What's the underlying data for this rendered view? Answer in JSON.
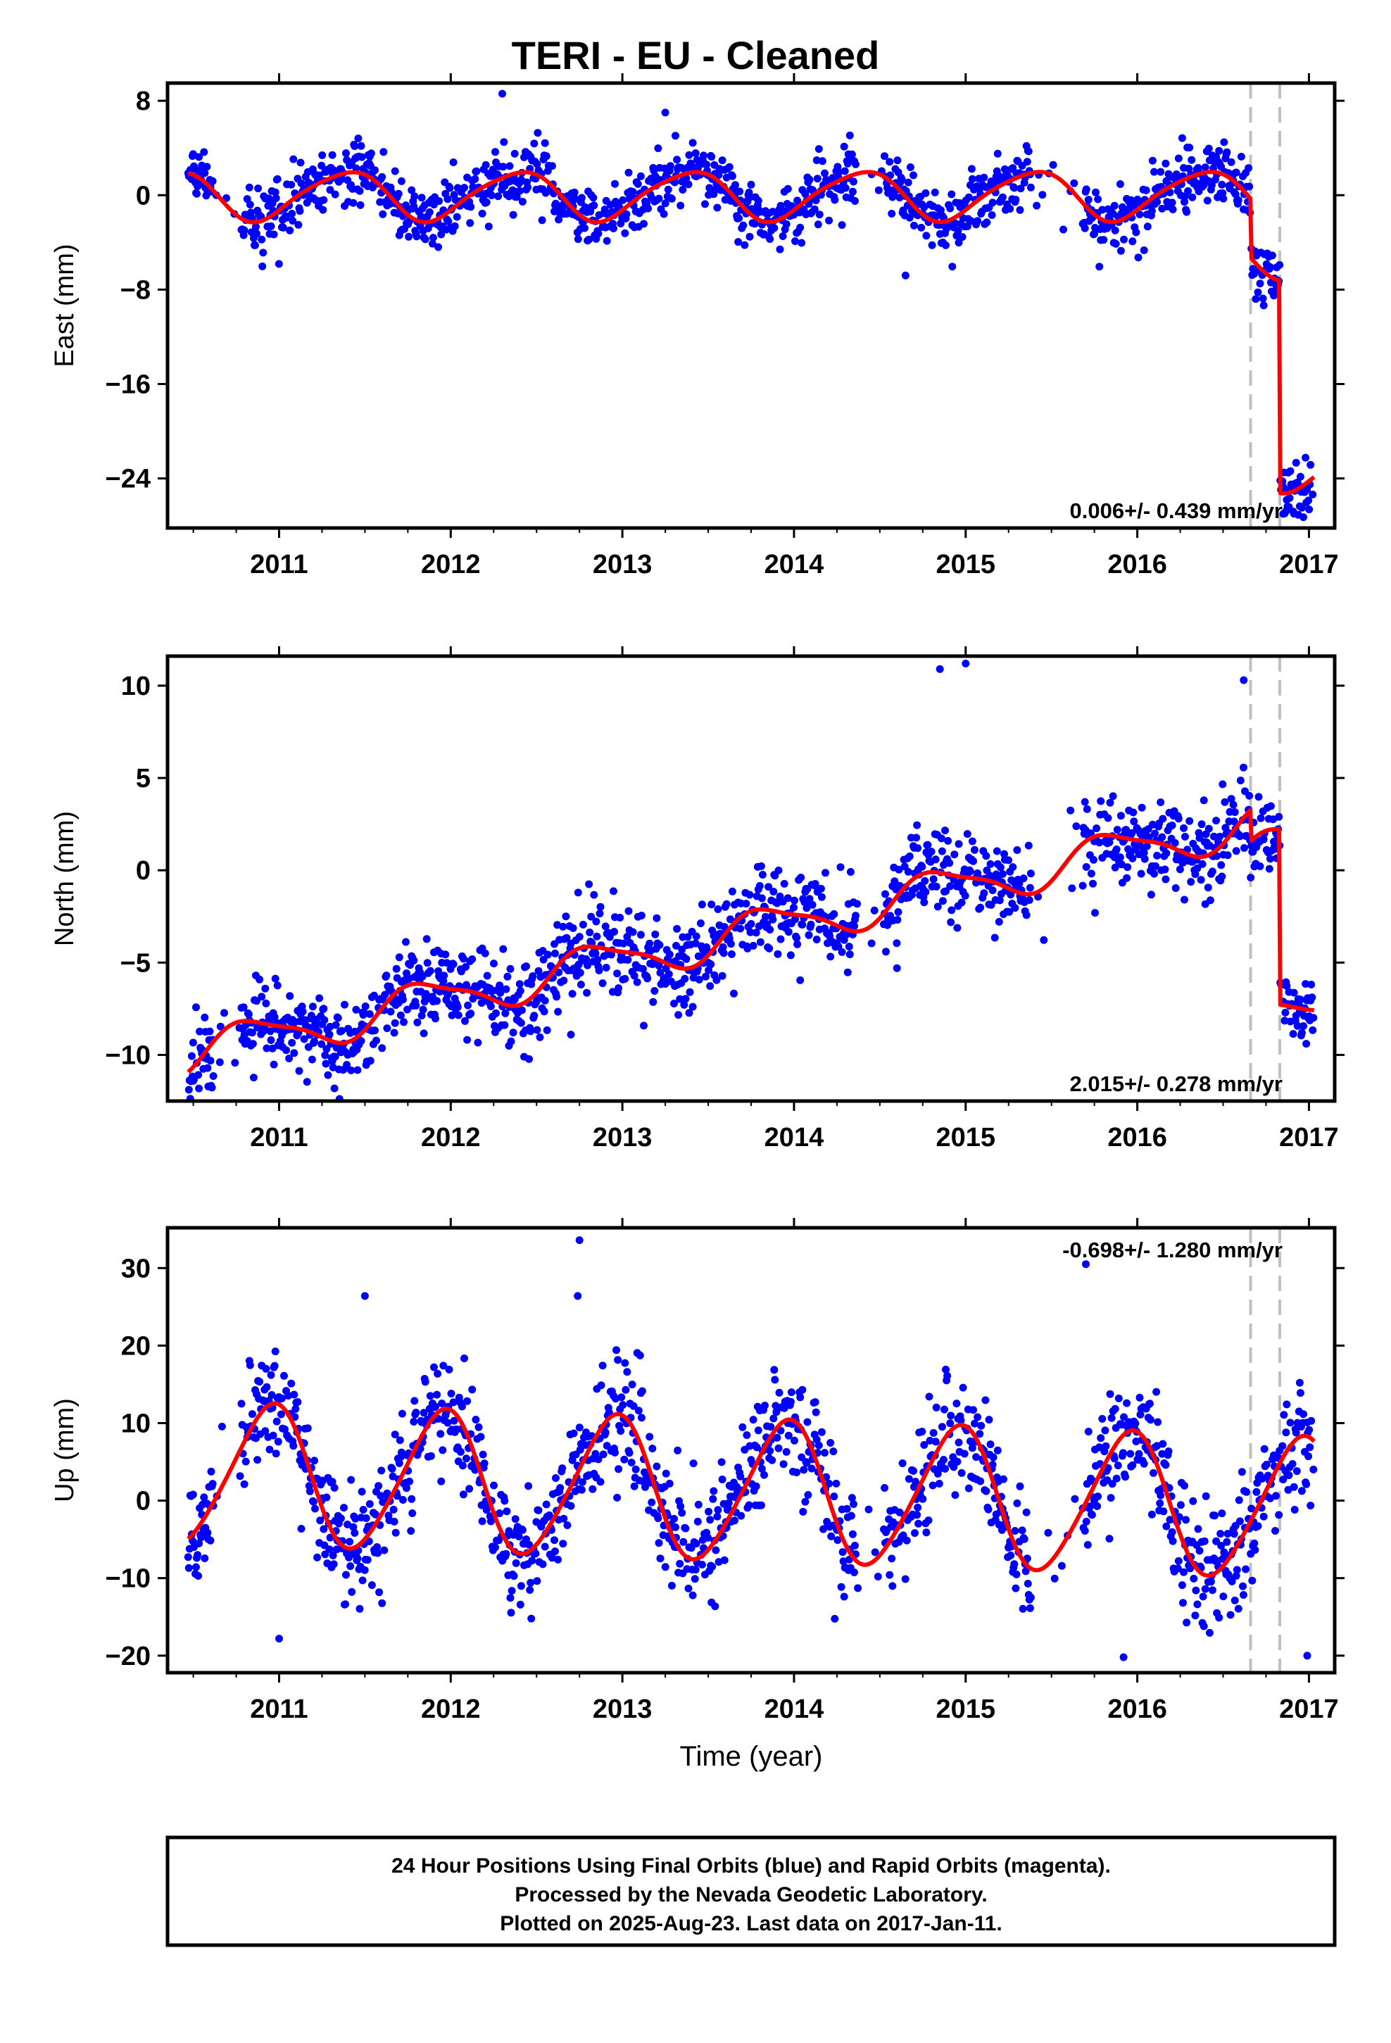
{
  "figure_title": "TERI  - EU - Cleaned",
  "footer": [
    "24 Hour Positions Using Final Orbits (blue) and Rapid Orbits (magenta).",
    "Processed by the Nevada Geodetic Laboratory.",
    "Plotted on 2025-Aug-23. Last data on 2017-Jan-11."
  ],
  "colors": {
    "points": "#0000ff",
    "fit": "#ff0000",
    "break_lines": "#c0c0c0",
    "frame": "#000000"
  },
  "chart_data": [
    {
      "type": "scatter",
      "name": "east",
      "ylabel": "East (mm)",
      "xlabel": "",
      "xlim": [
        2010.35,
        2017.15
      ],
      "ylim": [
        -28.2,
        9.5
      ],
      "xticks": [
        2011,
        2012,
        2013,
        2014,
        2015,
        2016,
        2017
      ],
      "yticks": [
        8,
        0,
        -8,
        -16,
        -24
      ],
      "ytick_labels": [
        "8",
        "0",
        "−8",
        "−16",
        "−24"
      ],
      "velocity_label": "0.006+/- 0.439 mm/yr",
      "velocity_label_position": "bottom-right",
      "breaks": [
        2016.66,
        2016.83
      ],
      "model": {
        "data_start": 2010.47,
        "data_end": 2017.03,
        "trend": 0.006,
        "offset": 0.0,
        "annual_sin": 1.4,
        "annual_cos": -1.5,
        "semiannual_sin": 0.2,
        "semiannual_cos": 0.25,
        "steps": [
          [
            2016.66,
            -5.0
          ],
          [
            2016.83,
            -18.0
          ]
        ],
        "noise": 1.3
      },
      "outliers": [
        [
          2012.3,
          8.6
        ],
        [
          2013.25,
          7.0
        ],
        [
          2014.65,
          -6.8
        ],
        [
          2016.85,
          -27.0
        ]
      ]
    },
    {
      "type": "scatter",
      "name": "north",
      "ylabel": "North (mm)",
      "xlabel": "",
      "xlim": [
        2010.35,
        2017.15
      ],
      "ylim": [
        -12.5,
        11.6
      ],
      "xticks": [
        2011,
        2012,
        2013,
        2014,
        2015,
        2016,
        2017
      ],
      "yticks": [
        10,
        5,
        0,
        -5,
        -10
      ],
      "ytick_labels": [
        "10",
        "5",
        "0",
        "−5",
        "−10"
      ],
      "velocity_label": "2.015+/- 0.278 mm/yr",
      "velocity_label_position": "bottom-right",
      "breaks": [
        2016.66,
        2016.83
      ],
      "model": {
        "data_start": 2010.47,
        "data_end": 2017.03,
        "trend": 2.015,
        "offset": -2.8,
        "annual_sin": -0.9,
        "annual_cos": 0.6,
        "semiannual_sin": 0.2,
        "semiannual_cos": -0.2,
        "steps": [
          [
            2016.66,
            -1.7
          ],
          [
            2016.83,
            -9.5
          ]
        ],
        "noise": 1.2
      },
      "outliers": [
        [
          2014.85,
          10.9
        ],
        [
          2015.0,
          11.2
        ],
        [
          2014.6,
          -5.3
        ],
        [
          2011.4,
          -10.0
        ],
        [
          2012.7,
          -8.9
        ],
        [
          2016.62,
          10.3
        ],
        [
          2010.5,
          -11.4
        ]
      ]
    },
    {
      "type": "scatter",
      "name": "up",
      "ylabel": "Up (mm)",
      "xlabel": "Time (year)",
      "xlim": [
        2010.35,
        2017.15
      ],
      "ylim": [
        -22.2,
        35.2
      ],
      "xticks": [
        2011,
        2012,
        2013,
        2014,
        2015,
        2016,
        2017
      ],
      "yticks": [
        30,
        20,
        10,
        0,
        -10,
        -20
      ],
      "ytick_labels": [
        "30",
        "20",
        "10",
        "0",
        "−10",
        "−20"
      ],
      "velocity_label": "-0.698+/- 1.280 mm/yr",
      "velocity_label_position": "top-right",
      "breaks": [
        2016.66,
        2016.83
      ],
      "model": {
        "data_start": 2010.47,
        "data_end": 2017.03,
        "trend": -0.698,
        "offset": 1.0,
        "annual_sin": -3.0,
        "annual_cos": 8.5,
        "semiannual_sin": 0.6,
        "semiannual_cos": 0.8,
        "steps": [
          [
            2016.66,
            0.0
          ],
          [
            2016.83,
            0.0
          ]
        ],
        "noise": 3.8
      },
      "outliers": [
        [
          2012.75,
          33.6
        ],
        [
          2015.7,
          30.5
        ],
        [
          2011.5,
          26.4
        ],
        [
          2012.74,
          26.4
        ],
        [
          2015.92,
          -20.2
        ],
        [
          2016.99,
          -20.0
        ],
        [
          2011.0,
          -17.8
        ]
      ]
    }
  ]
}
